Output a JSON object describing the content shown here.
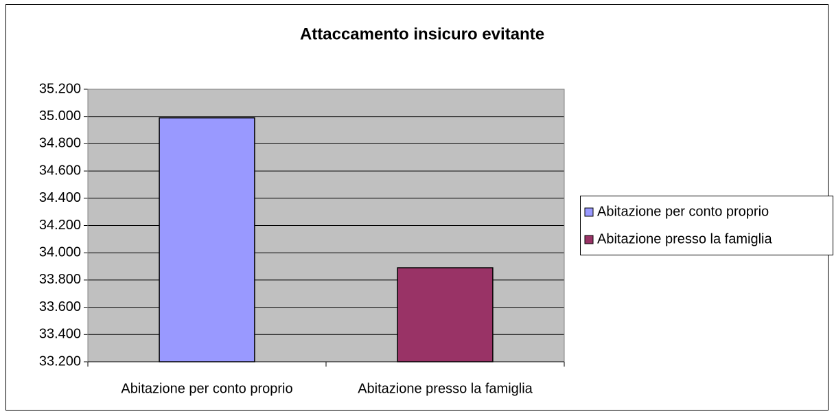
{
  "chart_data": {
    "type": "bar",
    "title": "Attaccamento insicuro evitante",
    "categories": [
      "Abitazione per conto proprio",
      "Abitazione presso la famiglia"
    ],
    "values": [
      34.99,
      33.89
    ],
    "colors": [
      "#9999ff",
      "#993366"
    ],
    "ylim": [
      33.2,
      35.2
    ],
    "yticks": [
      {
        "value": 33.2,
        "label": "33.200"
      },
      {
        "value": 33.4,
        "label": "33.400"
      },
      {
        "value": 33.6,
        "label": "33.600"
      },
      {
        "value": 33.8,
        "label": "33.800"
      },
      {
        "value": 34.0,
        "label": "34.000"
      },
      {
        "value": 34.2,
        "label": "34.200"
      },
      {
        "value": 34.4,
        "label": "34.400"
      },
      {
        "value": 34.6,
        "label": "34.600"
      },
      {
        "value": 34.8,
        "label": "34.800"
      },
      {
        "value": 35.0,
        "label": "35.000"
      },
      {
        "value": 35.2,
        "label": "35.200"
      }
    ],
    "grid": true,
    "legend": "right"
  }
}
